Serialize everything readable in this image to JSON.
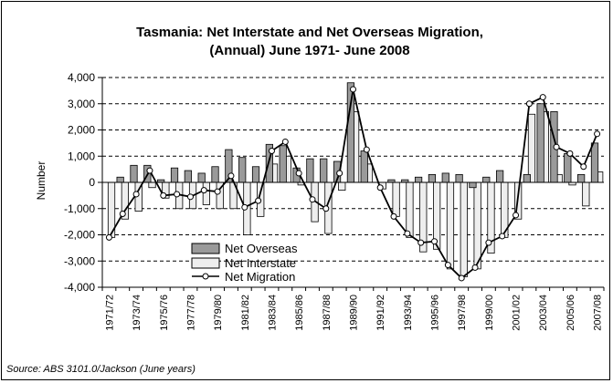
{
  "source": "Source: ABS 3101.0/Jackson (June years)",
  "chart_data": {
    "type": "bar",
    "title_lines": [
      "Tasmania: Net Interstate and Net Overseas Migration,",
      "(Annual) June 1971- June 2008"
    ],
    "xlabel": "",
    "ylabel": "Number",
    "ylim": [
      -4000,
      4000
    ],
    "ytick_values": [
      -4000,
      -3000,
      -2000,
      -1000,
      0,
      1000,
      2000,
      3000,
      4000
    ],
    "ytick_labels": [
      "-4,000",
      "-3,000",
      "-2,000",
      "-1,000",
      "0",
      "1,000",
      "2,000",
      "3,000",
      "4,000"
    ],
    "gridlines": "dashed horizontal at each major tick",
    "legend_position": "lower-left inside plot",
    "categories": [
      "1971/72",
      "1972/73",
      "1973/74",
      "1974/75",
      "1975/76",
      "1976/77",
      "1977/78",
      "1978/79",
      "1979/80",
      "1980/81",
      "1981/82",
      "1982/83",
      "1983/84",
      "1984/85",
      "1985/86",
      "1986/87",
      "1987/88",
      "1988/89",
      "1989/90",
      "1990/91",
      "1991/92",
      "1992/93",
      "1993/94",
      "1994/95",
      "1995/96",
      "1996/97",
      "1997/98",
      "1998/99",
      "1999/00",
      "2000/01",
      "2001/02",
      "2002/03",
      "2003/04",
      "2004/05",
      "2005/06",
      "2006/07",
      "2007/08"
    ],
    "xtick_labels": [
      "1971/72",
      "1973/74",
      "1975/76",
      "1977/78",
      "1979/80",
      "1981/82",
      "1983/84",
      "1985/86",
      "1987/88",
      "1989/90",
      "1991/92",
      "1993/94",
      "1995/96",
      "1997/98",
      "1999/00",
      "2001/02",
      "2003/04",
      "2005/06",
      "2007/08"
    ],
    "series": [
      {
        "name": "Net Overseas",
        "kind": "bar",
        "color": "#9a9a9a",
        "values": [
          0,
          200,
          650,
          650,
          100,
          550,
          450,
          350,
          600,
          1250,
          950,
          600,
          1450,
          1400,
          550,
          900,
          900,
          800,
          3800,
          1200,
          0,
          100,
          100,
          200,
          300,
          350,
          300,
          -200,
          200,
          450,
          0,
          300,
          3000,
          2700,
          1100,
          300,
          1500
        ]
      },
      {
        "name": "Net Interstate",
        "kind": "bar",
        "color": "#eeeeee",
        "values": [
          -2100,
          -1400,
          -1100,
          -200,
          -600,
          -1000,
          -1000,
          -850,
          -1000,
          -1000,
          -2000,
          -1300,
          700,
          1000,
          -100,
          -1500,
          -1950,
          -300,
          2700,
          700,
          -250,
          -1300,
          -2100,
          -2650,
          -2550,
          -3300,
          -3600,
          -3300,
          -2700,
          -2100,
          -1400,
          2600,
          2700,
          300,
          -100,
          -900,
          400
        ]
      },
      {
        "name": "Net Migration",
        "kind": "line",
        "color": "#000000",
        "values": [
          -2100,
          -1200,
          -450,
          450,
          -500,
          -450,
          -550,
          -300,
          -350,
          250,
          -950,
          -700,
          1200,
          1550,
          350,
          -650,
          -1000,
          350,
          3550,
          1250,
          -200,
          -1300,
          -1950,
          -2300,
          -2250,
          -3150,
          -3650,
          -3250,
          -2300,
          -2050,
          -1250,
          3000,
          3250,
          1350,
          1100,
          600,
          1850
        ]
      }
    ]
  }
}
